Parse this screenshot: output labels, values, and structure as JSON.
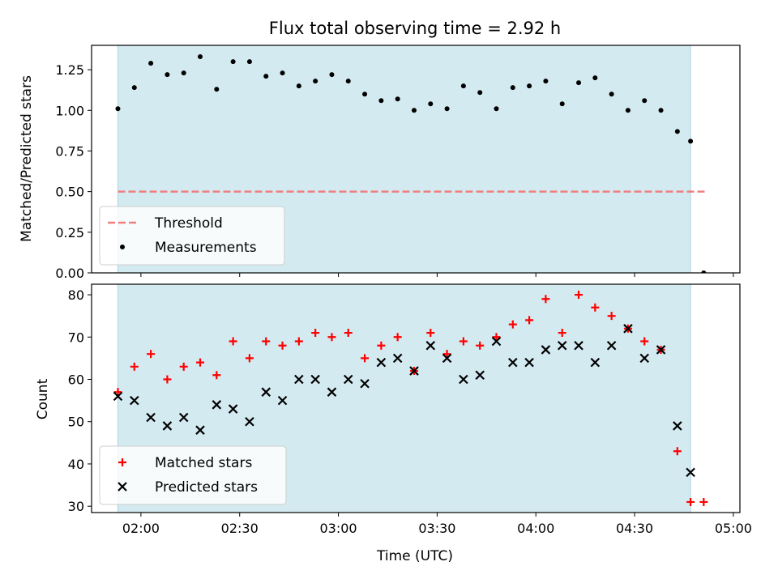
{
  "chart_data": [
    {
      "type": "scatter",
      "panel": "top",
      "title": "Flux total observing time = 2.92 h",
      "xlabel": "",
      "ylabel": "Matched/Predicted stars",
      "xlim": [
        "01:45",
        "05:02"
      ],
      "ylim": [
        0,
        1.4
      ],
      "y_ticks": [
        "0.00",
        "0.25",
        "0.50",
        "0.75",
        "1.00",
        "1.25"
      ],
      "x_ticks_labels_shown": false,
      "observing_window": [
        "01:53",
        "04:47"
      ],
      "observing_window_color": "#d4eaf1",
      "threshold": {
        "name": "Threshold",
        "y": 0.5,
        "x": [
          "01:53",
          "04:52"
        ],
        "color": "#f08080",
        "style": "dashed"
      },
      "legend": {
        "placement": "lower-left",
        "entries": [
          "Threshold",
          "Measurements"
        ]
      },
      "series": [
        {
          "name": "Measurements",
          "marker": "dot",
          "color": "#000000",
          "points": [
            [
              "01:53",
              1.01
            ],
            [
              "01:58",
              1.14
            ],
            [
              "02:03",
              1.29
            ],
            [
              "02:08",
              1.22
            ],
            [
              "02:13",
              1.23
            ],
            [
              "02:18",
              1.33
            ],
            [
              "02:23",
              1.13
            ],
            [
              "02:28",
              1.3
            ],
            [
              "02:33",
              1.3
            ],
            [
              "02:38",
              1.21
            ],
            [
              "02:43",
              1.23
            ],
            [
              "02:48",
              1.15
            ],
            [
              "02:53",
              1.18
            ],
            [
              "02:58",
              1.22
            ],
            [
              "03:03",
              1.18
            ],
            [
              "03:08",
              1.1
            ],
            [
              "03:13",
              1.06
            ],
            [
              "03:18",
              1.07
            ],
            [
              "03:23",
              1.0
            ],
            [
              "03:28",
              1.04
            ],
            [
              "03:33",
              1.01
            ],
            [
              "03:38",
              1.15
            ],
            [
              "03:43",
              1.11
            ],
            [
              "03:48",
              1.01
            ],
            [
              "03:53",
              1.14
            ],
            [
              "03:58",
              1.15
            ],
            [
              "04:03",
              1.18
            ],
            [
              "04:08",
              1.04
            ],
            [
              "04:13",
              1.17
            ],
            [
              "04:18",
              1.2
            ],
            [
              "04:23",
              1.1
            ],
            [
              "04:28",
              1.0
            ],
            [
              "04:33",
              1.06
            ],
            [
              "04:38",
              1.0
            ],
            [
              "04:43",
              0.87
            ],
            [
              "04:47",
              0.81
            ],
            [
              "04:51",
              0.0
            ]
          ]
        }
      ]
    },
    {
      "type": "scatter",
      "panel": "bottom",
      "title": "",
      "xlabel": "Time (UTC)",
      "ylabel": "Count",
      "xlim": [
        "01:45",
        "05:02"
      ],
      "ylim": [
        28.5,
        82.5
      ],
      "y_ticks": [
        "30",
        "40",
        "50",
        "60",
        "70",
        "80"
      ],
      "x_ticks": [
        "02:00",
        "02:30",
        "03:00",
        "03:30",
        "04:00",
        "04:30",
        "05:00"
      ],
      "observing_window": [
        "01:53",
        "04:47"
      ],
      "observing_window_color": "#d4eaf1",
      "legend": {
        "placement": "lower-left",
        "entries": [
          "Matched stars",
          "Predicted stars"
        ]
      },
      "series": [
        {
          "name": "Matched stars",
          "marker": "plus",
          "color": "#ff0000",
          "points": [
            [
              "01:53",
              57
            ],
            [
              "01:58",
              63
            ],
            [
              "02:03",
              66
            ],
            [
              "02:08",
              60
            ],
            [
              "02:13",
              63
            ],
            [
              "02:18",
              64
            ],
            [
              "02:23",
              61
            ],
            [
              "02:28",
              69
            ],
            [
              "02:33",
              65
            ],
            [
              "02:38",
              69
            ],
            [
              "02:43",
              68
            ],
            [
              "02:48",
              69
            ],
            [
              "02:53",
              71
            ],
            [
              "02:58",
              70
            ],
            [
              "03:03",
              71
            ],
            [
              "03:08",
              65
            ],
            [
              "03:13",
              68
            ],
            [
              "03:18",
              70
            ],
            [
              "03:23",
              62
            ],
            [
              "03:28",
              71
            ],
            [
              "03:33",
              66
            ],
            [
              "03:38",
              69
            ],
            [
              "03:43",
              68
            ],
            [
              "03:48",
              70
            ],
            [
              "03:53",
              73
            ],
            [
              "03:58",
              74
            ],
            [
              "04:03",
              79
            ],
            [
              "04:08",
              71
            ],
            [
              "04:13",
              80
            ],
            [
              "04:18",
              77
            ],
            [
              "04:23",
              75
            ],
            [
              "04:28",
              72
            ],
            [
              "04:33",
              69
            ],
            [
              "04:38",
              67
            ],
            [
              "04:43",
              43
            ],
            [
              "04:47",
              31
            ],
            [
              "04:51",
              31
            ]
          ]
        },
        {
          "name": "Predicted stars",
          "marker": "x",
          "color": "#000000",
          "points": [
            [
              "01:53",
              56
            ],
            [
              "01:58",
              55
            ],
            [
              "02:03",
              51
            ],
            [
              "02:08",
              49
            ],
            [
              "02:13",
              51
            ],
            [
              "02:18",
              48
            ],
            [
              "02:23",
              54
            ],
            [
              "02:28",
              53
            ],
            [
              "02:33",
              50
            ],
            [
              "02:38",
              57
            ],
            [
              "02:43",
              55
            ],
            [
              "02:48",
              60
            ],
            [
              "02:53",
              60
            ],
            [
              "02:58",
              57
            ],
            [
              "03:03",
              60
            ],
            [
              "03:08",
              59
            ],
            [
              "03:13",
              64
            ],
            [
              "03:18",
              65
            ],
            [
              "03:23",
              62
            ],
            [
              "03:28",
              68
            ],
            [
              "03:33",
              65
            ],
            [
              "03:38",
              60
            ],
            [
              "03:43",
              61
            ],
            [
              "03:48",
              69
            ],
            [
              "03:53",
              64
            ],
            [
              "03:58",
              64
            ],
            [
              "04:03",
              67
            ],
            [
              "04:08",
              68
            ],
            [
              "04:13",
              68
            ],
            [
              "04:18",
              64
            ],
            [
              "04:23",
              68
            ],
            [
              "04:28",
              72
            ],
            [
              "04:33",
              65
            ],
            [
              "04:38",
              67
            ],
            [
              "04:43",
              49
            ],
            [
              "04:47",
              38
            ]
          ]
        }
      ]
    }
  ]
}
